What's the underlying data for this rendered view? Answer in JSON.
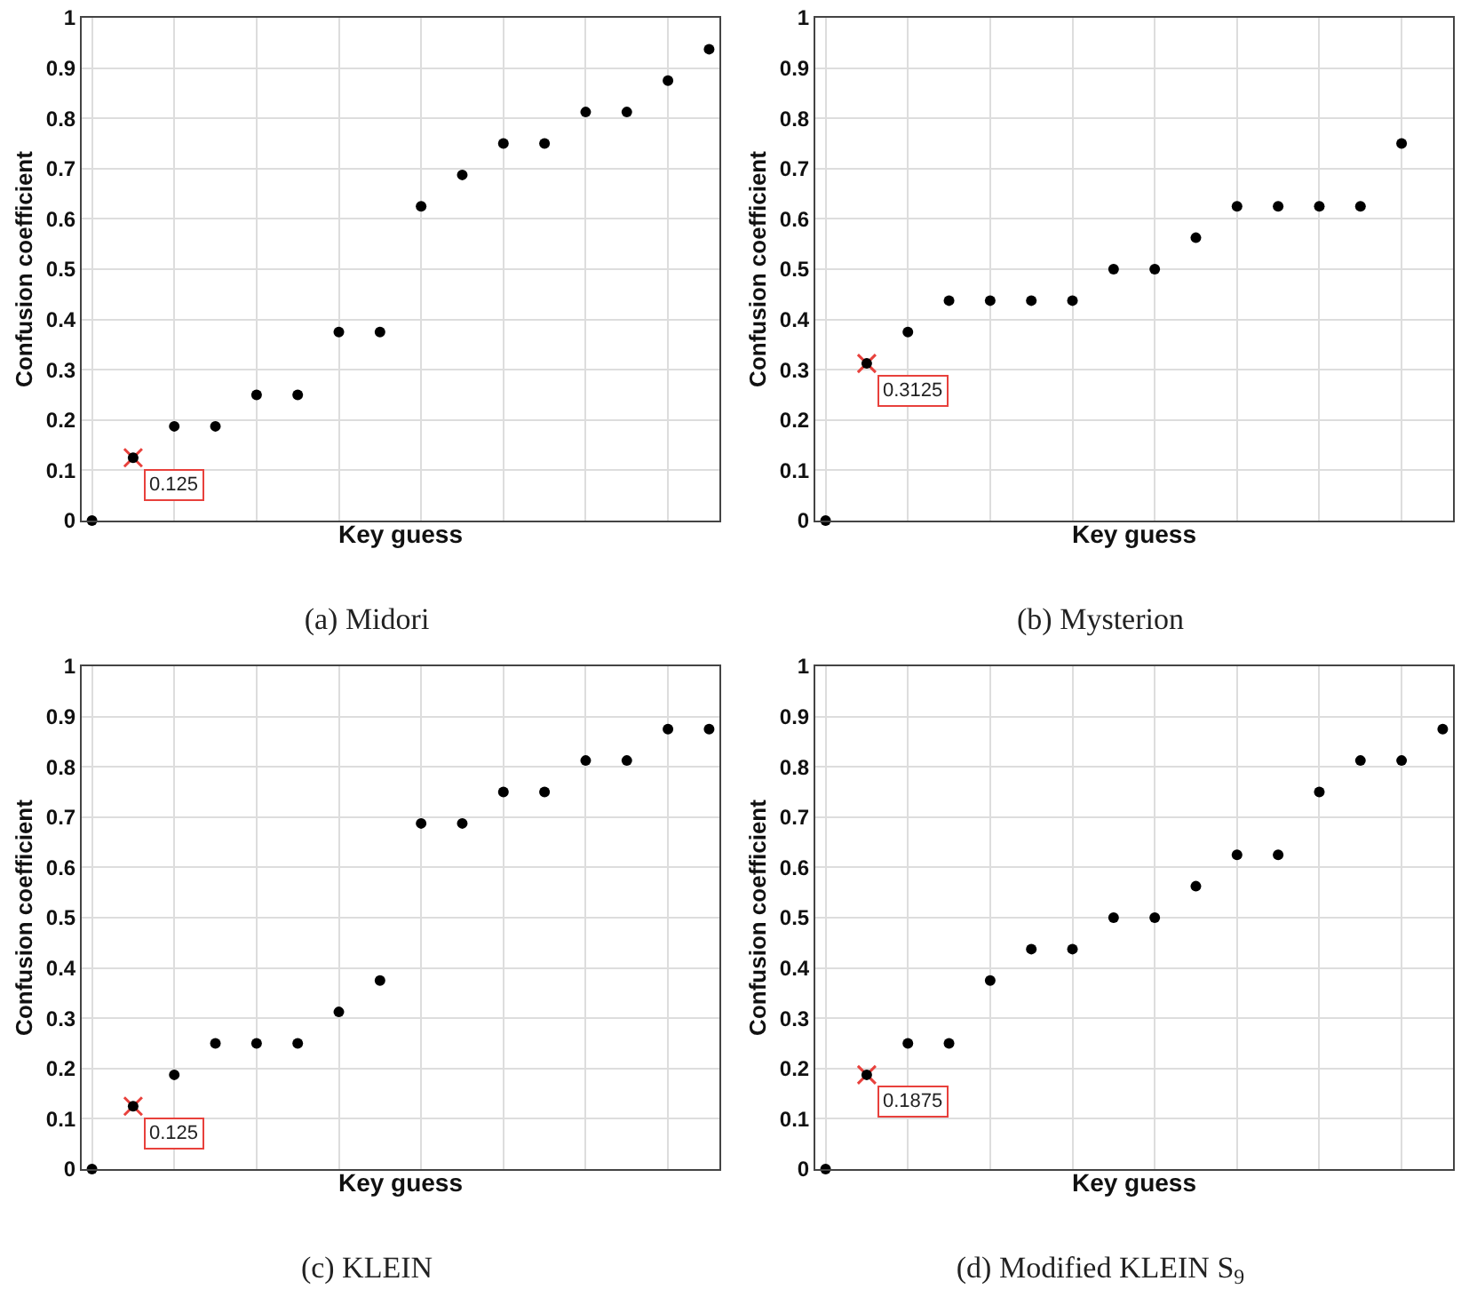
{
  "chart_data": [
    {
      "type": "scatter",
      "title": "(a) Midori",
      "xlabel": "Key guess",
      "ylabel": "Confusion coefficient",
      "categories": [
        null,
        null,
        null,
        null,
        null,
        null,
        null,
        null,
        null,
        null,
        null,
        null,
        null,
        null,
        null,
        null
      ],
      "ylim": [
        0,
        1
      ],
      "yticks": [
        0,
        0.1,
        0.2,
        0.3,
        0.4,
        0.5,
        0.6,
        0.7,
        0.8,
        0.9,
        1
      ],
      "grid": true,
      "tick_labels": "y",
      "marker": "circle",
      "series": [
        {
          "color": "#000000",
          "values": [
            0,
            0.125,
            0.1875,
            0.1875,
            0.25,
            0.25,
            0.375,
            0.375,
            0.625,
            0.6875,
            0.75,
            0.75,
            0.8125,
            0.8125,
            0.875,
            0.9375
          ]
        },
        {
          "color": "#e8413c",
          "marker": "cross",
          "values": [
            null,
            0.125,
            null,
            null,
            null,
            null,
            null,
            null,
            null,
            null,
            null,
            null,
            null,
            null,
            null,
            null
          ]
        }
      ],
      "annotations": [
        "0.125"
      ]
    },
    {
      "type": "scatter",
      "title": "(b) Mysterion",
      "xlabel": "Key guess",
      "ylabel": "Confusion coefficient",
      "categories": [
        null,
        null,
        null,
        null,
        null,
        null,
        null,
        null,
        null,
        null,
        null,
        null,
        null,
        null,
        null,
        null
      ],
      "ylim": [
        0,
        1
      ],
      "yticks": [
        0,
        0.1,
        0.2,
        0.3,
        0.4,
        0.5,
        0.6,
        0.7,
        0.8,
        0.9,
        1
      ],
      "grid": true,
      "tick_labels": "y",
      "marker": "circle",
      "series": [
        {
          "color": "#000000",
          "values": [
            0,
            0.3125,
            0.375,
            0.4375,
            0.4375,
            0.4375,
            0.4375,
            0.5,
            0.5,
            0.5625,
            0.625,
            0.625,
            0.625,
            0.625,
            0.75,
            null
          ]
        },
        {
          "color": "#e8413c",
          "marker": "cross",
          "values": [
            null,
            0.3125,
            null,
            null,
            null,
            null,
            null,
            null,
            null,
            null,
            null,
            null,
            null,
            null,
            null,
            null
          ]
        }
      ],
      "annotations": [
        "0.3125"
      ]
    },
    {
      "type": "scatter",
      "title": "(c) KLEIN",
      "xlabel": "Key guess",
      "ylabel": "Confusion coefficient",
      "categories": [
        null,
        null,
        null,
        null,
        null,
        null,
        null,
        null,
        null,
        null,
        null,
        null,
        null,
        null,
        null,
        null
      ],
      "ylim": [
        0,
        1
      ],
      "yticks": [
        0,
        0.1,
        0.2,
        0.3,
        0.4,
        0.5,
        0.6,
        0.7,
        0.8,
        0.9,
        1
      ],
      "grid": true,
      "tick_labels": "y",
      "marker": "circle",
      "series": [
        {
          "color": "#000000",
          "values": [
            0,
            0.125,
            0.1875,
            0.25,
            0.25,
            0.25,
            0.3125,
            0.375,
            0.6875,
            0.6875,
            0.75,
            0.75,
            0.8125,
            0.8125,
            0.875,
            0.875
          ]
        },
        {
          "color": "#e8413c",
          "marker": "cross",
          "values": [
            null,
            0.125,
            null,
            null,
            null,
            null,
            null,
            null,
            null,
            null,
            null,
            null,
            null,
            null,
            null,
            null
          ]
        }
      ],
      "annotations": [
        "0.125"
      ]
    },
    {
      "type": "scatter",
      "title": "(d) Modified KLEIN S$_{9}$",
      "xlabel": "Key guess",
      "ylabel": "Confusion coefficient",
      "categories": [
        null,
        null,
        null,
        null,
        null,
        null,
        null,
        null,
        null,
        null,
        null,
        null,
        null,
        null,
        null,
        null
      ],
      "ylim": [
        0,
        1
      ],
      "yticks": [
        0,
        0.1,
        0.2,
        0.3,
        0.4,
        0.5,
        0.6,
        0.7,
        0.8,
        0.9,
        1
      ],
      "grid": true,
      "tick_labels": "y",
      "marker": "circle",
      "series": [
        {
          "color": "#000000",
          "values": [
            0,
            0.1875,
            0.25,
            0.25,
            0.375,
            0.4375,
            0.4375,
            0.5,
            0.5,
            0.5625,
            0.625,
            0.625,
            0.75,
            0.8125,
            0.8125,
            0.875
          ]
        },
        {
          "color": "#e8413c",
          "marker": "cross",
          "values": [
            null,
            0.1875,
            null,
            null,
            null,
            null,
            null,
            null,
            null,
            null,
            null,
            null,
            null,
            null,
            null,
            null
          ]
        }
      ],
      "annotations": [
        "0.1875"
      ]
    }
  ]
}
